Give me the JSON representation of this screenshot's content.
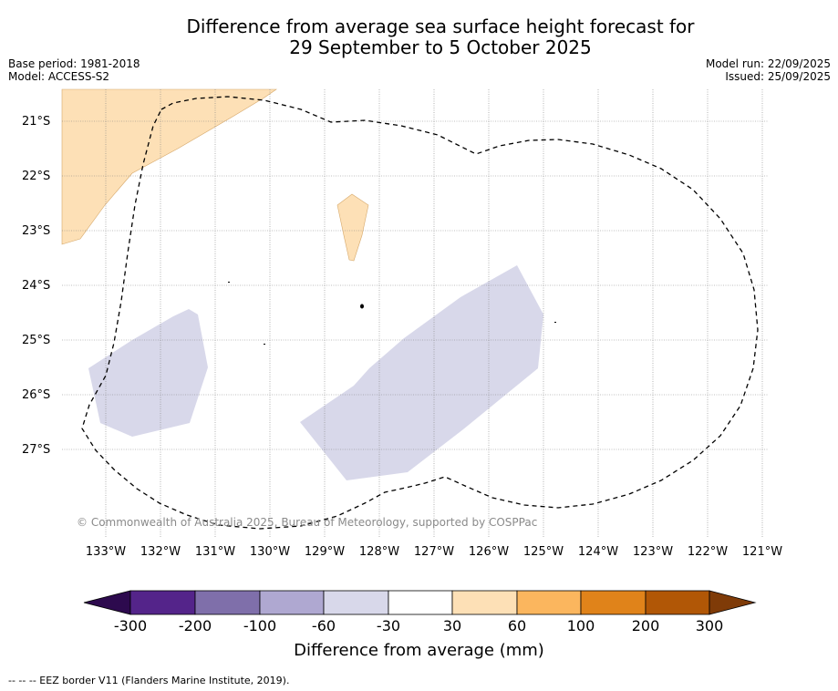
{
  "title": {
    "line1": "Difference from average sea surface height forecast for",
    "line2": "29 September to 5 October 2025"
  },
  "meta_left": {
    "base_period": "Base period: 1981-2018",
    "model": "Model: ACCESS-S2"
  },
  "meta_right": {
    "model_run": "Model run: 22/09/2025",
    "issued": "Issued: 25/09/2025"
  },
  "map": {
    "lat_labels": [
      "21°S",
      "22°S",
      "23°S",
      "24°S",
      "25°S",
      "26°S",
      "27°S"
    ],
    "lon_labels": [
      "133°W",
      "132°W",
      "131°W",
      "130°W",
      "129°W",
      "128°W",
      "127°W",
      "126°W",
      "125°W",
      "124°W",
      "123°W",
      "122°W",
      "121°W"
    ],
    "copyright": "© Commonwealth of Australia 2025, Bureau of Meteorology, supported by COSPPac"
  },
  "colorbar": {
    "ticks": [
      "-300",
      "-200",
      "-100",
      "-60",
      "-30",
      "30",
      "60",
      "100",
      "200",
      "300"
    ],
    "colors": [
      "#2d0a4e",
      "#54248a",
      "#7f6faa",
      "#afa8d1",
      "#d8d8ea",
      "#ffffff",
      "#fde0b6",
      "#fbb65e",
      "#e0831a",
      "#b15706",
      "#7f3b08"
    ],
    "label": "Difference from average (mm)"
  },
  "colors": {
    "positive_light": "#fde0b6",
    "negative_light": "#d8d8ea",
    "eez_line": "#000000",
    "grid": "#808080"
  },
  "footnote": "-- -- -- EEZ border V11 (Flanders Marine Institute, 2019)."
}
